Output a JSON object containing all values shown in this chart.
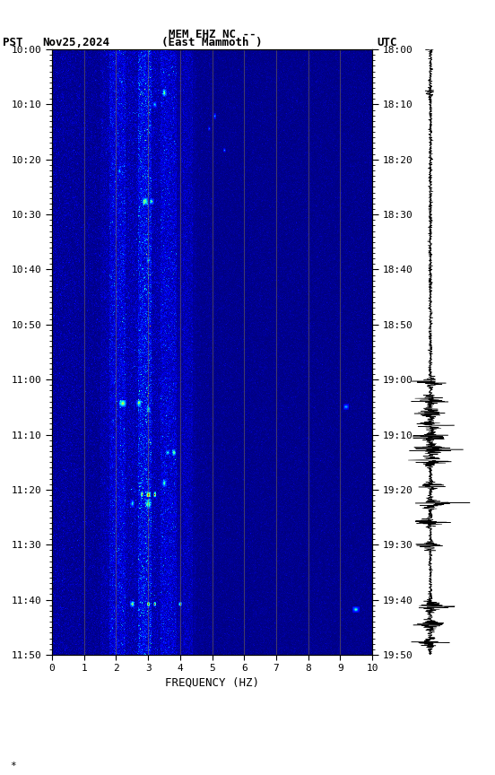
{
  "title_line1": "MEM EHZ NC --",
  "title_line2": "(East Mammoth )",
  "left_label": "PST",
  "date_label": "Nov25,2024",
  "right_label": "UTC",
  "xlabel": "FREQUENCY (HZ)",
  "freq_min": 0,
  "freq_max": 10,
  "pst_ticks": [
    "10:00",
    "10:10",
    "10:20",
    "10:30",
    "10:40",
    "10:50",
    "11:00",
    "11:10",
    "11:20",
    "11:30",
    "11:40",
    "11:50"
  ],
  "utc_ticks": [
    "18:00",
    "18:10",
    "18:20",
    "18:30",
    "18:40",
    "18:50",
    "19:00",
    "19:10",
    "19:20",
    "19:30",
    "19:40",
    "19:50"
  ],
  "n_time": 700,
  "n_freq": 500,
  "background_color": "#ffffff",
  "fig_width": 5.52,
  "fig_height": 8.64,
  "seed": 42,
  "grid_line_color": "#887744",
  "grid_line_alpha": 0.6,
  "vmin": 0,
  "vmax": 10
}
